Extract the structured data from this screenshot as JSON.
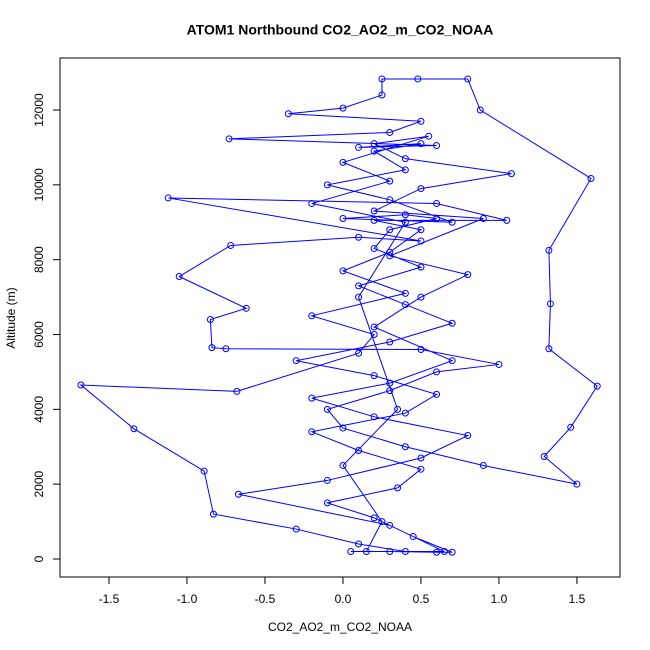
{
  "chart_data": {
    "type": "line",
    "title": "ATOM1 Northbound CO2_AO2_m_CO2_NOAA",
    "x_label": "CO2_AO2_m_CO2_NOAA",
    "y_label": "Altitude (m)",
    "color": "#0000ff",
    "markers": true,
    "x": [
      0.05,
      0.3,
      0.6,
      0.7,
      0.45,
      0.2,
      -0.1,
      0.35,
      0.5,
      0.1,
      -0.2,
      0.4,
      0.6,
      0.2,
      -0.3,
      0.3,
      0.7,
      0.4,
      0.1,
      0.5,
      0.2,
      0.3,
      0.6,
      0.4,
      0.0,
      0.7,
      0.3,
      -0.1,
      0.4,
      0.2,
      0.5,
      0.1,
      0.6,
      -0.73,
      0.3,
      0.5,
      -0.35,
      0.0,
      0.25,
      0.25,
      0.48,
      0.8,
      0.88,
      1.59,
      1.32,
      1.33,
      1.32,
      1.63,
      1.46,
      1.29,
      1.5,
      0.9,
      0.4,
      0.0,
      -0.1,
      0.3,
      0.6,
      1.0,
      0.5,
      -0.75,
      -0.84,
      -0.85,
      -0.62,
      -1.05,
      -0.72,
      0.1,
      0.5,
      -1.12,
      0.6,
      1.05,
      0.2,
      0.5,
      0.3,
      0.0,
      0.4,
      -0.2,
      0.2,
      0.1,
      -0.68,
      -1.68,
      -1.34,
      -0.89,
      -0.83,
      -0.3,
      0.1,
      0.4,
      0.65,
      0.3,
      -0.67,
      -0.1,
      0.5,
      0.8,
      0.2,
      -0.2,
      0.3,
      0.7,
      0.2,
      0.5,
      0.8,
      0.3,
      0.9,
      0.2,
      0.5,
      1.08,
      0.4,
      0.2,
      0.55,
      0.0,
      0.3,
      -0.2,
      0.4,
      0.1,
      0.35,
      0.0,
      0.25,
      0.15
    ],
    "values": [
      200,
      200,
      180,
      180,
      600,
      1100,
      1500,
      1900,
      2400,
      2900,
      3400,
      3900,
      4400,
      4900,
      5300,
      5800,
      6300,
      6800,
      7300,
      7800,
      8300,
      8800,
      9100,
      9200,
      9100,
      9000,
      9600,
      10000,
      10400,
      10900,
      11100,
      11000,
      11050,
      11230,
      11400,
      11700,
      11900,
      12050,
      12400,
      12830,
      12830,
      12830,
      12000,
      10170,
      8250,
      6820,
      5620,
      4620,
      3520,
      2740,
      2000,
      2500,
      3000,
      3500,
      4000,
      4500,
      5000,
      5200,
      5600,
      5620,
      5650,
      6400,
      6700,
      7550,
      8380,
      8600,
      8500,
      9650,
      9500,
      9050,
      9050,
      8800,
      8200,
      7700,
      7100,
      6500,
      6000,
      5500,
      4480,
      4650,
      3480,
      2350,
      1200,
      800,
      400,
      200,
      200,
      900,
      1730,
      2100,
      2700,
      3300,
      3800,
      4300,
      4700,
      5300,
      6200,
      7000,
      7600,
      8100,
      9100,
      9300,
      9900,
      10300,
      10700,
      11100,
      11300,
      10600,
      10100,
      9500,
      9000,
      7000,
      4000,
      2500,
      1000,
      200
    ],
    "xlim": [
      -1.814,
      1.776
    ],
    "ylim": [
      -481,
      13390
    ],
    "xticks": [
      -1.5,
      {
        "value": -1,
        "label": "-1.0"
      },
      -0.5,
      {
        "value": 0,
        "label": "0.0"
      },
      0.5,
      {
        "value": 1,
        "label": "1.0"
      },
      1.5
    ],
    "yticks": [
      0,
      2000,
      4000,
      6000,
      8000,
      10000,
      12000
    ]
  }
}
